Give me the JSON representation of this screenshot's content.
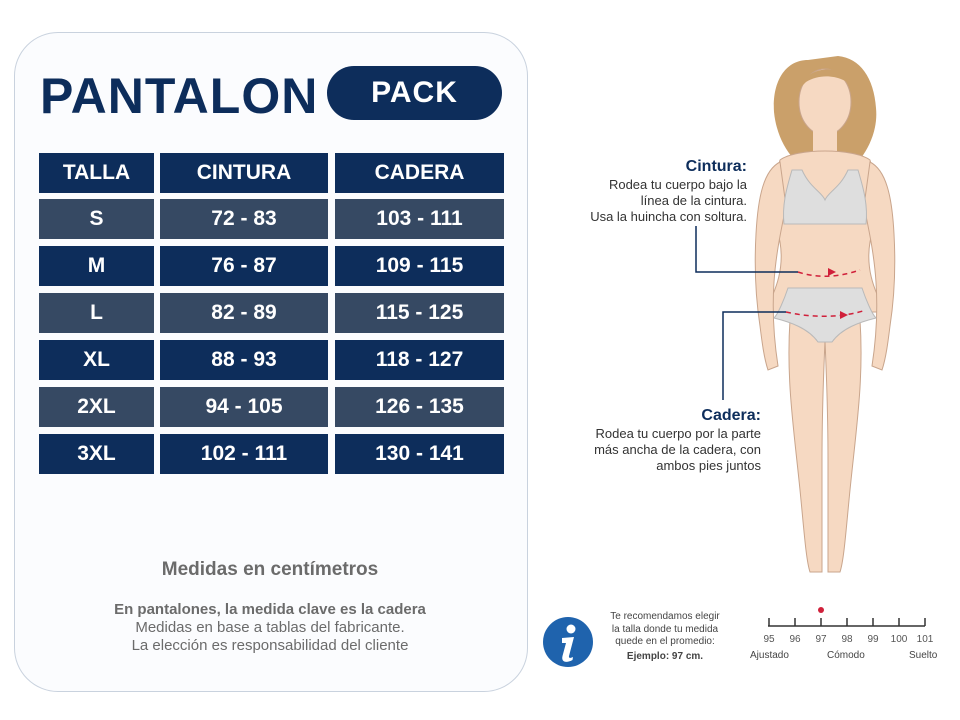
{
  "header": {
    "title": "PANTALON",
    "badge": "PACK"
  },
  "table": {
    "headers": [
      "TALLA",
      "CINTURA",
      "CADERA"
    ],
    "rows": [
      [
        "S",
        "72 - 83",
        "103 - 111"
      ],
      [
        "M",
        "76 - 87",
        "109 - 115"
      ],
      [
        "L",
        "82 - 89",
        "115 - 125"
      ],
      [
        "XL",
        "88 - 93",
        "118 - 127"
      ],
      [
        "2XL",
        "94 - 105",
        "126 - 135"
      ],
      [
        "3XL",
        "102 - 111",
        "130 - 141"
      ]
    ]
  },
  "notes": {
    "unit": "Medidas en centímetros",
    "key": "En pantalones, la medida clave es la cadera",
    "line1": "Medidas en base a tablas del fabricante.",
    "line2": "La elección es responsabilidad del cliente"
  },
  "cintura": {
    "title": "Cintura:",
    "line1": "Rodea tu cuerpo bajo la",
    "line2": "línea de la cintura.",
    "line3": "Usa la huincha con soltura."
  },
  "cadera": {
    "title": "Cadera:",
    "line1": "Rodea tu cuerpo por la parte",
    "line2": "más ancha de la cadera, con",
    "line3": "ambos pies juntos"
  },
  "info": {
    "icon": "info-icon",
    "line1": "Te recomendamos elegir",
    "line2": "la talla donde tu medida",
    "line3": "quede en el promedio:",
    "example": "Ejemplo: 97 cm."
  },
  "scale": {
    "ticks": [
      "95",
      "96",
      "97",
      "98",
      "99",
      "100",
      "101"
    ],
    "marked_value": "97",
    "left_word": "Ajustado",
    "mid_word": "Cómodo",
    "right_word": "Suelto"
  },
  "colors": {
    "navy": "#0d2d5b",
    "slate": "#364963",
    "accent_red": "#d0203a"
  }
}
